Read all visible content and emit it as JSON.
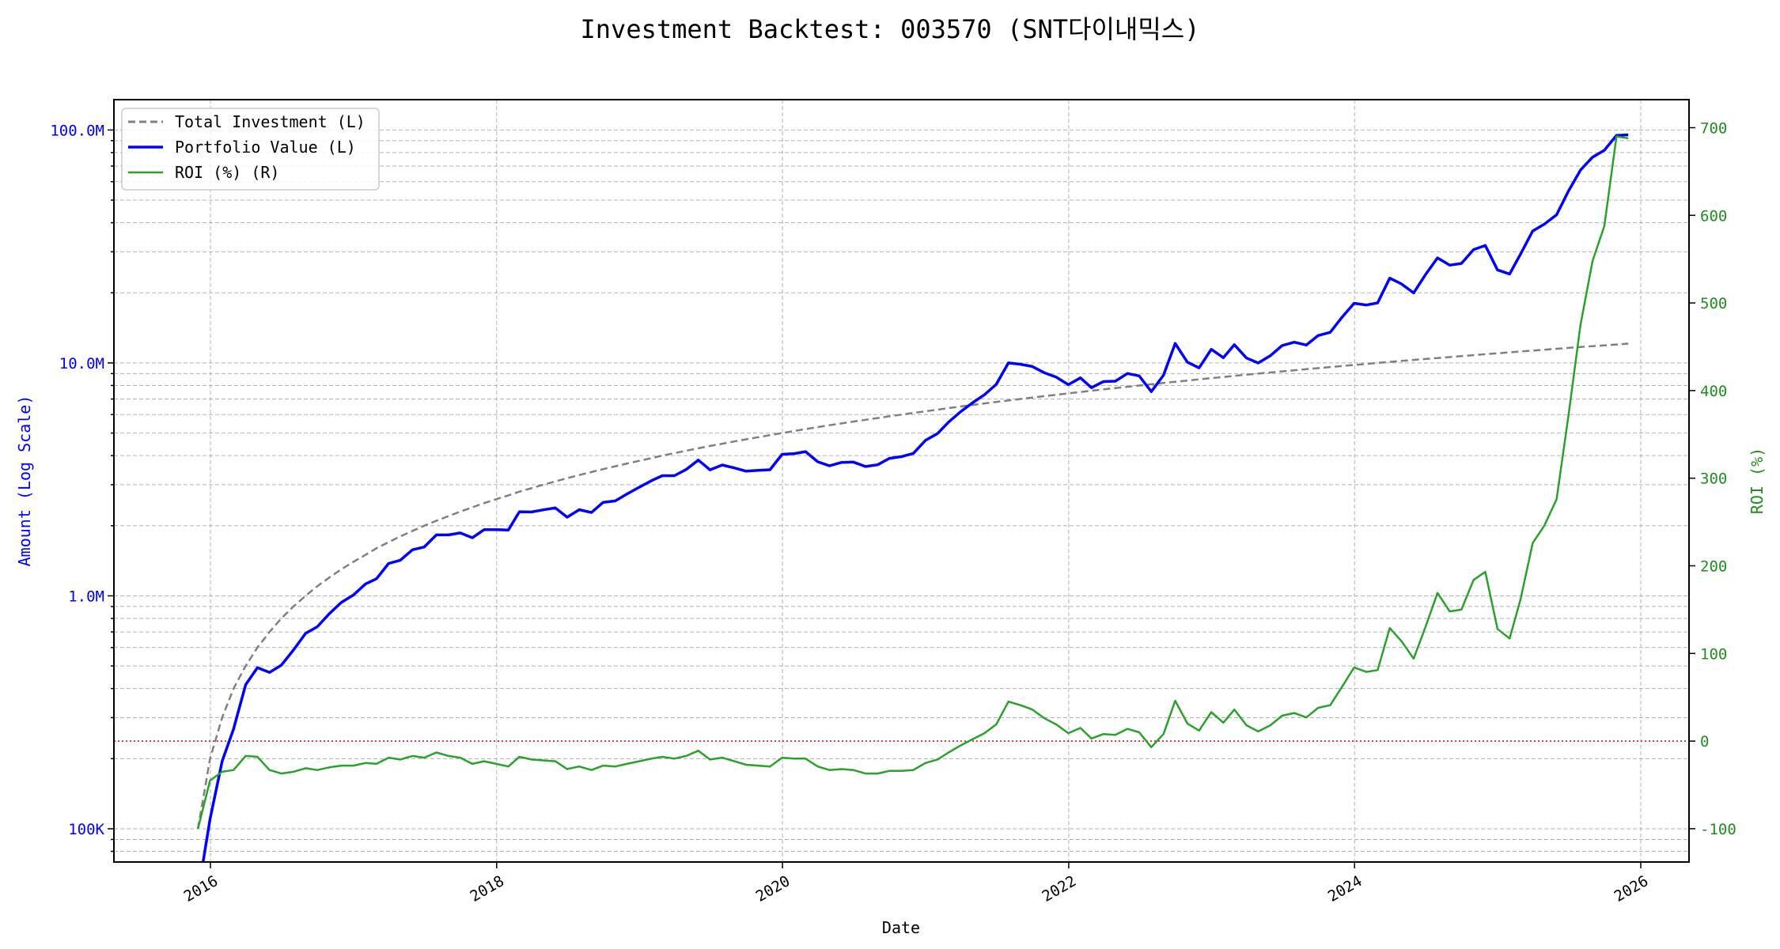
{
  "chart_data": {
    "type": "line",
    "title": "Investment Backtest: 003570 (SNT다이내믹스)",
    "xlabel": "Date",
    "ylabel_left": "Amount (Log Scale)",
    "ylabel_right": "ROI (%)",
    "left_scale": "log",
    "left_ylim": [
      72000,
      135000000
    ],
    "right_ylim": [
      -138,
      732
    ],
    "xlim": [
      "2015-06",
      "2026-04"
    ],
    "grid": true,
    "legend_position": "top-left",
    "x_tick_labels": [
      "2016",
      "2018",
      "2020",
      "2022",
      "2024",
      "2026"
    ],
    "left_tick_labels": [
      {
        "value": 100000000,
        "label": "100.0M"
      },
      {
        "value": 10000000,
        "label": "10.0M"
      },
      {
        "value": 1000000,
        "label": "1.0M"
      },
      {
        "value": 100000,
        "label": "100K"
      }
    ],
    "right_tick_labels": [
      "-100",
      "0",
      "100",
      "200",
      "300",
      "400",
      "500",
      "600",
      "700"
    ],
    "reference_line": {
      "axis": "right",
      "value": 0,
      "color": "#d62728",
      "style": "dotted"
    },
    "colors": {
      "investment": "#808080",
      "portfolio": "#0000ff",
      "roi": "#2ca02c",
      "left_axis": "#0000ff",
      "right_axis": "#228b22"
    },
    "dates": [
      "2015-11-30",
      "2015-12-31",
      "2016-01-31",
      "2016-02-29",
      "2016-03-31",
      "2016-04-30",
      "2016-05-31",
      "2016-06-30",
      "2016-07-31",
      "2016-08-31",
      "2016-09-30",
      "2016-10-31",
      "2016-11-30",
      "2016-12-31",
      "2017-01-31",
      "2017-02-28",
      "2017-03-31",
      "2017-04-30",
      "2017-05-31",
      "2017-06-30",
      "2017-07-31",
      "2017-08-31",
      "2017-09-30",
      "2017-10-31",
      "2017-11-30",
      "2017-12-31",
      "2018-01-31",
      "2018-02-28",
      "2018-03-31",
      "2018-04-30",
      "2018-05-31",
      "2018-06-30",
      "2018-07-31",
      "2018-08-31",
      "2018-09-30",
      "2018-10-31",
      "2018-11-30",
      "2018-12-31",
      "2019-01-31",
      "2019-02-28",
      "2019-03-31",
      "2019-04-30",
      "2019-05-31",
      "2019-06-30",
      "2019-07-31",
      "2019-08-31",
      "2019-09-30",
      "2019-10-31",
      "2019-11-30",
      "2019-12-31",
      "2020-01-31",
      "2020-02-29",
      "2020-03-31",
      "2020-04-30",
      "2020-05-31",
      "2020-06-30",
      "2020-07-31",
      "2020-08-31",
      "2020-09-30",
      "2020-10-31",
      "2020-11-30",
      "2020-12-31",
      "2021-01-31",
      "2021-02-28",
      "2021-03-31",
      "2021-04-30",
      "2021-05-31",
      "2021-06-30",
      "2021-07-31",
      "2021-08-31",
      "2021-09-30",
      "2021-10-31",
      "2021-11-30",
      "2021-12-31",
      "2022-01-31",
      "2022-02-28",
      "2022-03-31",
      "2022-04-30",
      "2022-05-31",
      "2022-06-30",
      "2022-07-31",
      "2022-08-31",
      "2022-09-30",
      "2022-10-31",
      "2022-11-30",
      "2022-12-31",
      "2023-01-31",
      "2023-02-28",
      "2023-03-31",
      "2023-04-30",
      "2023-05-31",
      "2023-06-30",
      "2023-07-31",
      "2023-08-31",
      "2023-09-30",
      "2023-10-31",
      "2023-11-30",
      "2023-12-31",
      "2024-01-31",
      "2024-02-29",
      "2024-03-31",
      "2024-04-30",
      "2024-05-31",
      "2024-06-30",
      "2024-07-31",
      "2024-08-31",
      "2024-09-30",
      "2024-10-31",
      "2024-11-30",
      "2024-12-31",
      "2025-01-31",
      "2025-02-28",
      "2025-03-31",
      "2025-04-30",
      "2025-05-31",
      "2025-06-30",
      "2025-07-31",
      "2025-08-31",
      "2025-09-30",
      "2025-10-31",
      "2025-11-30"
    ],
    "series": [
      {
        "name": "Total Investment (L)",
        "axis": "left",
        "style": "dashed",
        "values": [
          100000,
          200000,
          300000,
          400000,
          500000,
          600000,
          700000,
          800000,
          900000,
          1000000,
          1100000,
          1200000,
          1300000,
          1400000,
          1500000,
          1600000,
          1700000,
          1800000,
          1900000,
          2000000,
          2100000,
          2200000,
          2300000,
          2400000,
          2500000,
          2600000,
          2700000,
          2800000,
          2900000,
          3000000,
          3100000,
          3200000,
          3300000,
          3400000,
          3500000,
          3600000,
          3700000,
          3800000,
          3900000,
          4000000,
          4100000,
          4200000,
          4300000,
          4400000,
          4500000,
          4600000,
          4700000,
          4800000,
          4900000,
          5000000,
          5100000,
          5200000,
          5300000,
          5400000,
          5500000,
          5600000,
          5700000,
          5800000,
          5900000,
          6000000,
          6100000,
          6200000,
          6300000,
          6400000,
          6500000,
          6600000,
          6700000,
          6800000,
          6900000,
          7000000,
          7100000,
          7200000,
          7300000,
          7400000,
          7500000,
          7600000,
          7700000,
          7800000,
          7900000,
          8000000,
          8100000,
          8200000,
          8300000,
          8400000,
          8500000,
          8600000,
          8700000,
          8800000,
          8900000,
          9000000,
          9100000,
          9200000,
          9300000,
          9400000,
          9500000,
          9600000,
          9700000,
          9800000,
          9900000,
          10000000,
          10100000,
          10200000,
          10300000,
          10400000,
          10500000,
          10600000,
          10700000,
          10800000,
          10900000,
          11000000,
          11100000,
          11200000,
          11300000,
          11400000,
          11500000,
          11600000,
          11700000,
          11800000,
          11900000,
          12000000,
          12100000
        ]
      },
      {
        "name": "Portfolio Value (L)",
        "axis": "left",
        "style": "solid",
        "values": [
          0,
          110000,
          195000,
          268000,
          415000,
          492000,
          469000,
          504000,
          585000,
          690000,
          737000,
          840000,
          936000,
          1008000,
          1125000,
          1184000,
          1377000,
          1422000,
          1577000,
          1620000,
          1827000,
          1826000,
          1863000,
          1776000,
          1925000,
          1924000,
          1917000,
          2296000,
          2291000,
          2340000,
          2387000,
          2176000,
          2343000,
          2278000,
          2520000,
          2556000,
          2738000,
          2926000,
          3120000,
          3280000,
          3280000,
          3486000,
          3827000,
          3476000,
          3645000,
          3542000,
          3431000,
          3456000,
          3479000,
          4050000,
          4080000,
          4160000,
          3763000,
          3618000,
          3740000,
          3752000,
          3591000,
          3654000,
          3894000,
          3960000,
          4087000,
          4650000,
          4977000,
          5568000,
          6175000,
          6732000,
          7303000,
          8092000,
          10005000,
          9870000,
          9656000,
          9072000,
          8687000,
          8066000,
          8625000,
          7828000,
          8316000,
          8346000,
          9006000,
          8800000,
          7533000,
          8856000,
          12118000,
          10080000,
          9520000,
          11438000,
          10527000,
          11968000,
          10502000,
          9990000,
          10738000,
          11868000,
          12276000,
          11938000,
          13110000,
          13536000,
          15714000,
          18032000,
          17721000,
          18100000,
          23129000,
          21828000,
          19982000,
          23920000,
          28245000,
          26288000,
          26750000,
          30672000,
          31937000,
          25080000,
          24087000,
          29344000,
          36838000,
          39444000,
          43240000,
          54520000,
          67275000,
          76464000,
          81872000,
          94800000,
          95348000
        ]
      },
      {
        "name": "ROI (%) (R)",
        "axis": "right",
        "style": "solid",
        "values": [
          -100,
          -45,
          -35,
          -33,
          -17,
          -18,
          -33,
          -37,
          -35,
          -31,
          -33,
          -30,
          -28,
          -28,
          -25,
          -26,
          -19,
          -21,
          -17,
          -19,
          -13,
          -17,
          -19,
          -26,
          -23,
          -26,
          -29,
          -18,
          -21,
          -22,
          -23,
          -32,
          -29,
          -33,
          -28,
          -29,
          -26,
          -23,
          -20,
          -18,
          -20,
          -17,
          -11,
          -21,
          -19,
          -23,
          -27,
          -28,
          -29,
          -19,
          -20,
          -20,
          -29,
          -33,
          -32,
          -33,
          -37,
          -37,
          -34,
          -34,
          -33,
          -25,
          -21,
          -13,
          -5,
          2,
          9,
          19,
          45,
          41,
          36,
          26,
          19,
          9,
          15,
          3,
          8,
          7,
          14,
          10,
          -7,
          8,
          46,
          20,
          12,
          33,
          21,
          36,
          18,
          11,
          18,
          29,
          32,
          27,
          38,
          41,
          62,
          84,
          79,
          81,
          129,
          114,
          94,
          130,
          169,
          148,
          150,
          184,
          193,
          128,
          117,
          162,
          226,
          246,
          276,
          370,
          475,
          548,
          588,
          690,
          688
        ]
      }
    ]
  }
}
